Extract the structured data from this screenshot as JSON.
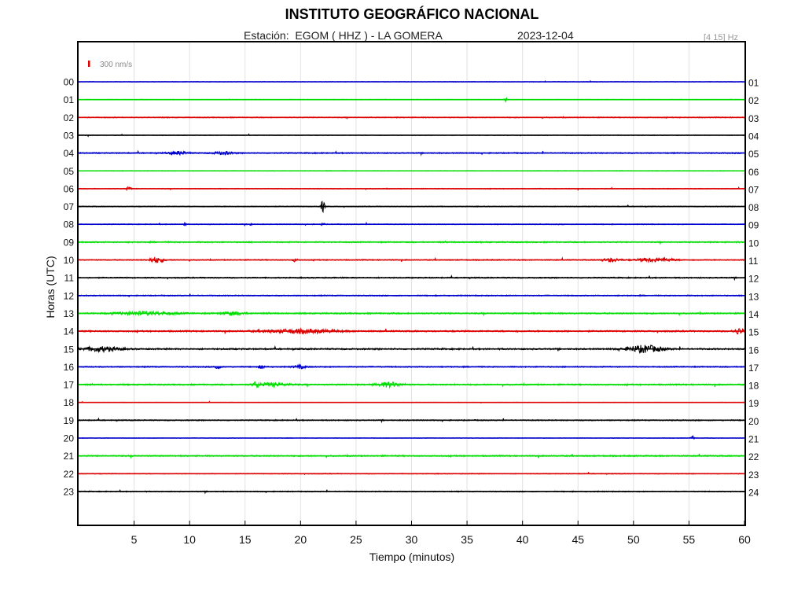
{
  "chart_data": {
    "type": "line",
    "title": "INSTITUTO GEOGRÁFICO NACIONAL",
    "station_label": "Estación:  EGOM ( HHZ ) - LA GOMERA",
    "date": "2023-12-04",
    "filter": "[4 15] Hz",
    "scale_label": "300 nm/s",
    "xlabel": "Tiempo (minutos)",
    "ylabel": "Horas (UTC)",
    "xlim": [
      0,
      60
    ],
    "x_ticks": [
      5,
      10,
      15,
      20,
      25,
      30,
      35,
      40,
      45,
      50,
      55,
      60
    ],
    "grid": true,
    "left_hour_labels": [
      "00",
      "01",
      "02",
      "03",
      "04",
      "05",
      "06",
      "07",
      "08",
      "09",
      "10",
      "11",
      "12",
      "13",
      "14",
      "15",
      "16",
      "17",
      "18",
      "19",
      "20",
      "21",
      "22",
      "23"
    ],
    "right_hour_labels": [
      "01",
      "02",
      "03",
      "04",
      "05",
      "06",
      "07",
      "08",
      "09",
      "10",
      "11",
      "12",
      "13",
      "14",
      "15",
      "16",
      "17",
      "18",
      "19",
      "20",
      "21",
      "22",
      "23",
      "24"
    ],
    "trace_colors": [
      "#0000cc",
      "#00dd00",
      "#dd0000",
      "#000000"
    ],
    "scale_color": "#dd0000",
    "traces": [
      {
        "hour": "00",
        "noise": 0.6,
        "events": []
      },
      {
        "hour": "01",
        "noise": 0.6,
        "events": [
          {
            "t": 38.5,
            "amp": 2.5,
            "dur": 0.2
          }
        ]
      },
      {
        "hour": "02",
        "noise": 1.0,
        "events": []
      },
      {
        "hour": "03",
        "noise": 0.7,
        "events": []
      },
      {
        "hour": "04",
        "noise": 1.3,
        "events": [
          {
            "t": 9,
            "amp": 2,
            "dur": 1.5
          },
          {
            "t": 13,
            "amp": 2,
            "dur": 1.5
          }
        ]
      },
      {
        "hour": "05",
        "noise": 0.7,
        "events": []
      },
      {
        "hour": "06",
        "noise": 0.8,
        "events": [
          {
            "t": 4.5,
            "amp": 2,
            "dur": 0.4
          }
        ]
      },
      {
        "hour": "07",
        "noise": 0.9,
        "events": [
          {
            "t": 22,
            "amp": 7,
            "dur": 0.25
          }
        ]
      },
      {
        "hour": "08",
        "noise": 0.9,
        "events": [
          {
            "t": 9.5,
            "amp": 2.5,
            "dur": 0.2
          },
          {
            "t": 15.5,
            "amp": 2,
            "dur": 0.2
          },
          {
            "t": 22,
            "amp": 2,
            "dur": 0.2
          }
        ]
      },
      {
        "hour": "09",
        "noise": 1.4,
        "events": []
      },
      {
        "hour": "10",
        "noise": 1.2,
        "events": [
          {
            "t": 7,
            "amp": 3.5,
            "dur": 1.2
          },
          {
            "t": 19.5,
            "amp": 2,
            "dur": 0.3
          },
          {
            "t": 48,
            "amp": 2,
            "dur": 1.5
          },
          {
            "t": 52,
            "amp": 2.5,
            "dur": 3
          }
        ]
      },
      {
        "hour": "11",
        "noise": 1.3,
        "events": []
      },
      {
        "hour": "12",
        "noise": 1.2,
        "events": []
      },
      {
        "hour": "13",
        "noise": 1.5,
        "events": [
          {
            "t": 6,
            "amp": 2,
            "dur": 5
          },
          {
            "t": 14,
            "amp": 2,
            "dur": 2
          }
        ]
      },
      {
        "hour": "14",
        "noise": 1.6,
        "events": [
          {
            "t": 20,
            "amp": 2.5,
            "dur": 6
          },
          {
            "t": 59.5,
            "amp": 3.5,
            "dur": 0.8
          }
        ]
      },
      {
        "hour": "15",
        "noise": 1.6,
        "events": [
          {
            "t": 2,
            "amp": 3,
            "dur": 3
          },
          {
            "t": 51,
            "amp": 4.5,
            "dur": 3
          }
        ]
      },
      {
        "hour": "16",
        "noise": 1.3,
        "events": [
          {
            "t": 12.5,
            "amp": 3,
            "dur": 0.4
          },
          {
            "t": 16.5,
            "amp": 2.5,
            "dur": 0.4
          },
          {
            "t": 20,
            "amp": 2,
            "dur": 1
          }
        ]
      },
      {
        "hour": "17",
        "noise": 1.5,
        "events": [
          {
            "t": 16,
            "amp": 3,
            "dur": 0.4
          },
          {
            "t": 17.5,
            "amp": 2,
            "dur": 3
          },
          {
            "t": 28,
            "amp": 3,
            "dur": 2
          }
        ]
      },
      {
        "hour": "18",
        "noise": 0.6,
        "events": []
      },
      {
        "hour": "19",
        "noise": 1.2,
        "events": []
      },
      {
        "hour": "20",
        "noise": 0.6,
        "events": [
          {
            "t": 55.3,
            "amp": 2.5,
            "dur": 0.2
          }
        ]
      },
      {
        "hour": "21",
        "noise": 1.4,
        "events": []
      },
      {
        "hour": "22",
        "noise": 0.9,
        "events": []
      },
      {
        "hour": "23",
        "noise": 1.1,
        "events": []
      }
    ]
  }
}
